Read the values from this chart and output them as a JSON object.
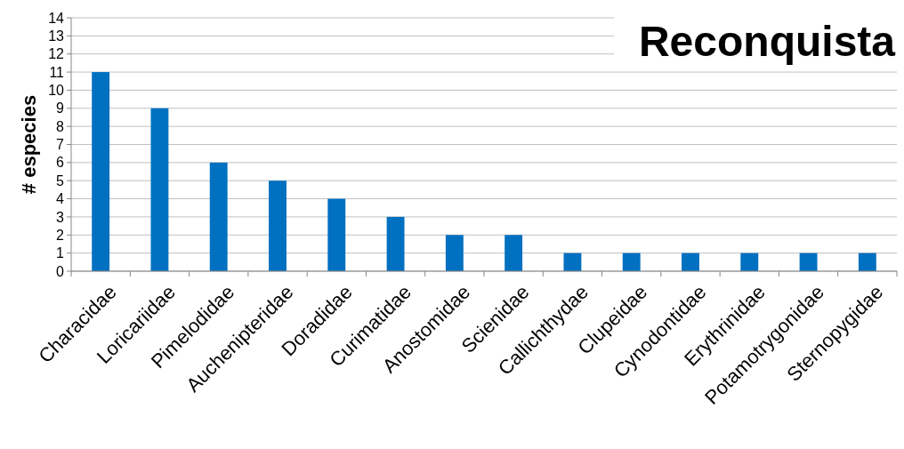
{
  "chart_data": {
    "type": "bar",
    "title": "Reconquista",
    "ylabel": "# especies",
    "categories": [
      "Characidae",
      "Loricariidae",
      "Pimelodidae",
      "Auchenipteridae",
      "Doradidae",
      "Curimatidae",
      "Anostomidae",
      "Scienidae",
      "Callichthydae",
      "Clupeidae",
      "Cynodontidae",
      "Erythrinidae",
      "Potamotrygonidae",
      "Sternopygidae"
    ],
    "values": [
      11,
      9,
      6,
      5,
      4,
      3,
      2,
      2,
      1,
      1,
      1,
      1,
      1,
      1
    ],
    "color": "#0070c0",
    "ylim": [
      0,
      14
    ],
    "yticks": [
      0,
      1,
      2,
      3,
      4,
      5,
      6,
      7,
      8,
      9,
      10,
      11,
      12,
      13,
      14
    ],
    "grid": "y"
  }
}
